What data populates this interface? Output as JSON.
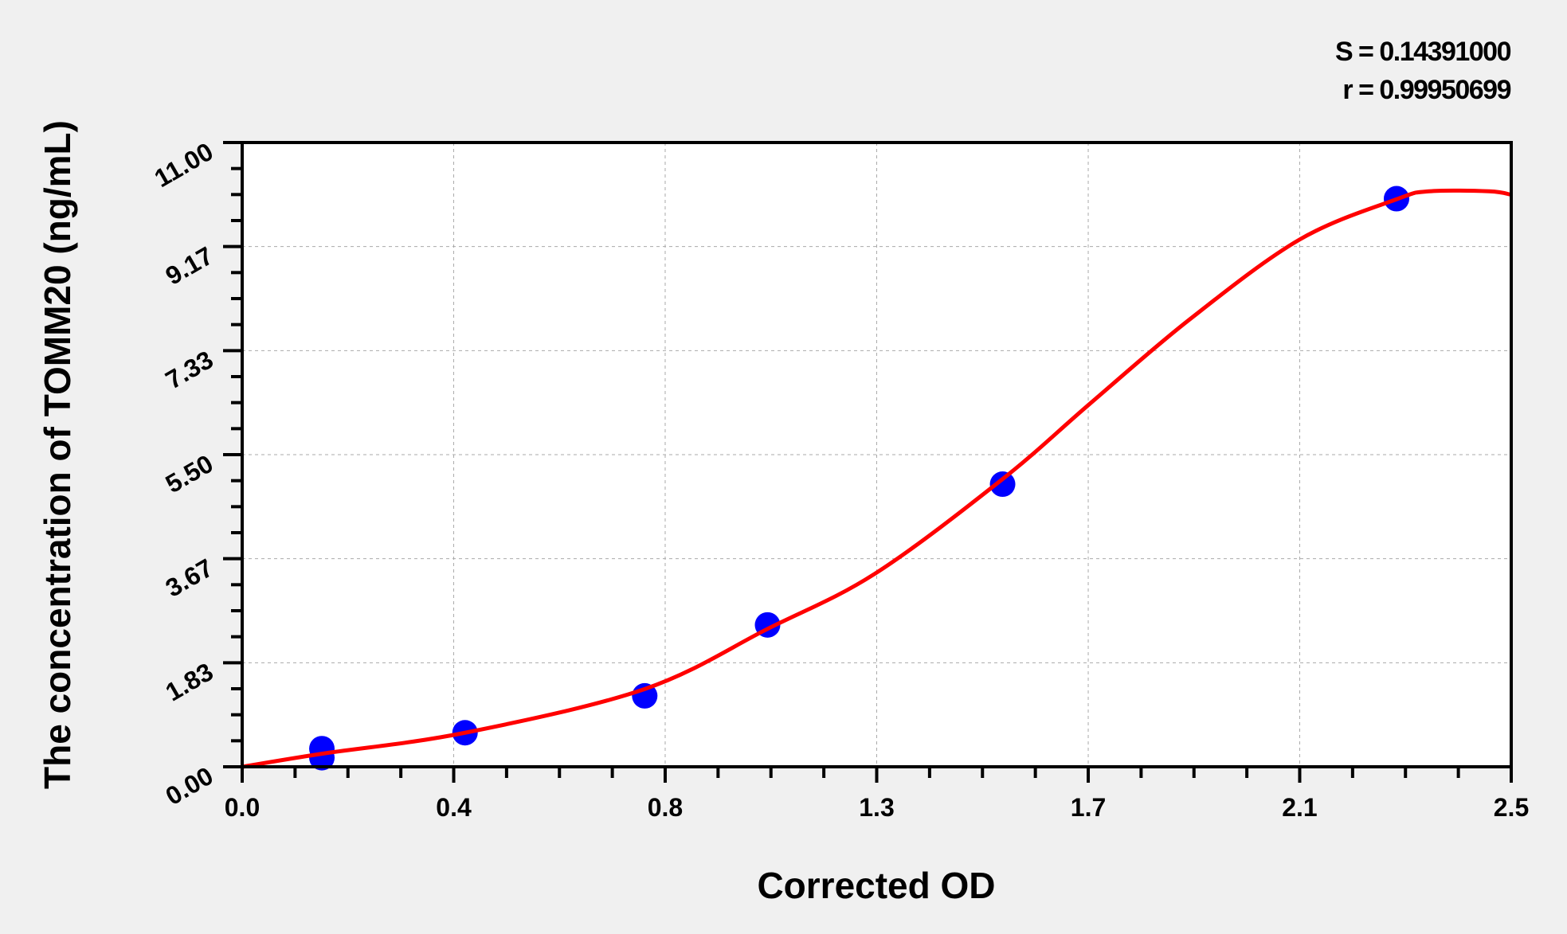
{
  "chart_data": {
    "type": "scatter",
    "title": "",
    "xlabel": "Corrected OD",
    "ylabel": "The concentration of TOMM20 (ng/mL)",
    "xlim": [
      0,
      2.5
    ],
    "ylim": [
      0,
      11
    ],
    "x_tick_values": [
      0,
      0.4167,
      0.8333,
      1.25,
      1.6667,
      2.0833,
      2.5
    ],
    "x_tick_labels": [
      "0.0",
      "0.4",
      "0.8",
      "1.3",
      "1.7",
      "2.1",
      "2.5"
    ],
    "y_tick_values": [
      0,
      1.8333,
      3.6667,
      5.5,
      7.3333,
      9.1667,
      11
    ],
    "y_tick_labels": [
      "0.00",
      "1.83",
      "3.67",
      "5.50",
      "7.33",
      "9.17",
      "11.00"
    ],
    "minor_ticks_per_interval": 3,
    "grid": true,
    "annotations": [
      "S = 0.14391000",
      "r = 0.99950699"
    ],
    "colors": {
      "points": "#0000ff",
      "curve": "#ff0000",
      "plot_bg": "#ffffff",
      "page_bg": "#f0f0f0",
      "grid": "#aaaaaa"
    },
    "series": [
      {
        "type": "scatter",
        "points": [
          [
            0.157,
            0.32
          ],
          [
            0.157,
            0.16
          ],
          [
            0.439,
            0.6
          ],
          [
            0.793,
            1.25
          ],
          [
            1.035,
            2.5
          ],
          [
            1.498,
            4.98
          ],
          [
            2.274,
            10.01
          ]
        ]
      },
      {
        "type": "line",
        "points": [
          [
            0,
            0
          ],
          [
            0.157,
            0.23
          ],
          [
            0.439,
            0.6
          ],
          [
            0.793,
            1.37
          ],
          [
            1.035,
            2.43
          ],
          [
            1.246,
            3.4
          ],
          [
            1.498,
            5.07
          ],
          [
            1.669,
            6.39
          ],
          [
            1.866,
            7.88
          ],
          [
            2.083,
            9.29
          ],
          [
            2.274,
            10.0
          ],
          [
            2.338,
            10.14
          ],
          [
            2.457,
            10.14
          ],
          [
            2.5,
            10.08
          ]
        ]
      }
    ]
  }
}
